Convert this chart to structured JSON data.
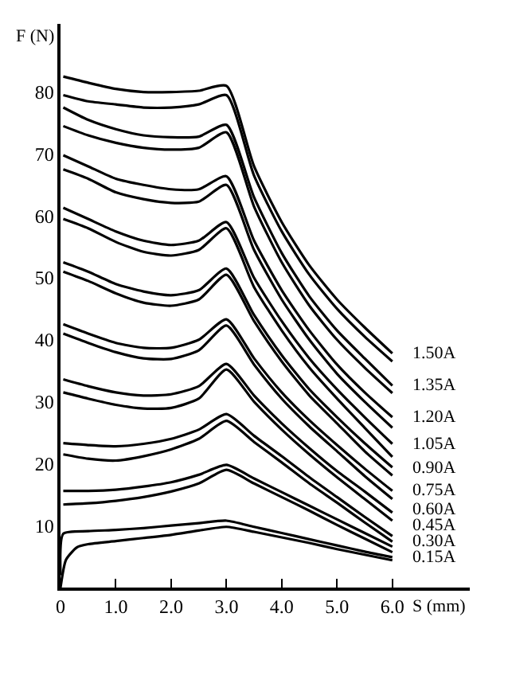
{
  "chart_data": {
    "type": "line",
    "xlabel": "S (mm)",
    "ylabel": "F (N)",
    "x": [
      0.05,
      0.5,
      1,
      1.5,
      2,
      2.5,
      3,
      3.5,
      4,
      4.5,
      5,
      5.5,
      6
    ],
    "xlim": [
      0,
      7.4
    ],
    "ylim": [
      0,
      91
    ],
    "xticks": [
      0,
      {
        "value": 1,
        "label": "1.0"
      },
      {
        "value": 2,
        "label": "2.0"
      },
      {
        "value": 3,
        "label": "3.0"
      },
      {
        "value": 4,
        "label": "4.0"
      },
      {
        "value": 5,
        "label": "5.0"
      },
      {
        "value": 6,
        "label": "6.0"
      }
    ],
    "yticks": [
      10,
      20,
      30,
      40,
      50,
      60,
      70,
      80
    ],
    "legend": false,
    "marker": "none",
    "line_style": "solid",
    "series": [
      {
        "name": "1.50A",
        "color": "#000000",
        "values": [
          82.5,
          81.5,
          80.5,
          80,
          80,
          80.2,
          81,
          68,
          59,
          52,
          46.5,
          42,
          37.8
        ]
      },
      {
        "color": "#000000",
        "values": [
          79.5,
          78.5,
          78,
          77.5,
          77.5,
          78,
          79.5,
          66.5,
          57.5,
          50.5,
          45,
          40.5,
          36.5
        ]
      },
      {
        "name": "1.35A",
        "color": "#000000",
        "values": [
          77.5,
          75.5,
          74,
          73,
          72.7,
          72.8,
          74.7,
          63,
          54,
          47,
          41.5,
          37,
          32.6
        ]
      },
      {
        "color": "#000000",
        "values": [
          74.5,
          73,
          71.8,
          71,
          70.7,
          71,
          73.5,
          61.5,
          52.5,
          45.5,
          40,
          35.5,
          31.4
        ]
      },
      {
        "name": "1.20A",
        "color": "#000000",
        "values": [
          69.8,
          68,
          66,
          65,
          64.3,
          64.3,
          66.4,
          56,
          48,
          41.5,
          36,
          31.5,
          27.5
        ]
      },
      {
        "color": "#000000",
        "values": [
          67.5,
          66,
          63.8,
          62.7,
          62.1,
          62.3,
          65,
          54.5,
          46.5,
          40,
          34.5,
          30,
          25.8
        ]
      },
      {
        "name": "1.05A",
        "color": "#000000",
        "values": [
          61.3,
          59.5,
          57.5,
          56,
          55.3,
          56,
          59,
          50,
          43,
          37,
          32,
          27.5,
          23.2
        ]
      },
      {
        "color": "#000000",
        "values": [
          59.5,
          58,
          55.8,
          54.2,
          53.6,
          54.5,
          58,
          48.5,
          41.5,
          35.5,
          30.5,
          25.8,
          21.1
        ]
      },
      {
        "name": "0.90A",
        "color": "#000000",
        "values": [
          52.5,
          51,
          49,
          47.8,
          47.2,
          48,
          51.5,
          44,
          37.5,
          32,
          27.5,
          23.3,
          19.4
        ]
      },
      {
        "color": "#000000",
        "values": [
          51,
          49.5,
          47.5,
          46,
          45.5,
          46.5,
          50.5,
          43,
          36.5,
          31,
          26.5,
          22,
          18.1
        ]
      },
      {
        "name": "0.75A",
        "color": "#000000",
        "values": [
          42.5,
          41,
          39.5,
          38.7,
          38.7,
          40,
          43.3,
          37,
          31.5,
          27,
          23,
          19.2,
          15.6
        ]
      },
      {
        "color": "#000000",
        "values": [
          41,
          39.5,
          38,
          37,
          36.9,
          38.3,
          42.3,
          36,
          30.5,
          26,
          22,
          18,
          14.3
        ]
      },
      {
        "name": "0.60A",
        "color": "#000000",
        "values": [
          33.6,
          32.5,
          31.5,
          31,
          31.2,
          32.5,
          36.1,
          31,
          26.5,
          22.5,
          18.8,
          15.5,
          12.1
        ]
      },
      {
        "color": "#000000",
        "values": [
          31.5,
          30.5,
          29.5,
          28.9,
          29,
          30.5,
          35.2,
          30,
          25.5,
          21.5,
          17.8,
          14.3,
          10.8
        ]
      },
      {
        "name": "0.45A",
        "color": "#000000",
        "values": [
          23.3,
          23,
          22.8,
          23.2,
          24,
          25.5,
          28,
          24.5,
          21.2,
          17.8,
          14.6,
          11.4,
          8.3
        ]
      },
      {
        "color": "#000000",
        "values": [
          21.5,
          20.8,
          20.5,
          21.2,
          22.3,
          24,
          26.9,
          23.5,
          20.2,
          16.8,
          13.7,
          10.5,
          7.4
        ]
      },
      {
        "name": "0.30A",
        "color": "#000000",
        "values": [
          15.6,
          15.6,
          15.8,
          16.3,
          17,
          18.2,
          19.8,
          17.6,
          15.4,
          13.2,
          11,
          8.8,
          6.6
        ]
      },
      {
        "color": "#000000",
        "values": [
          13.4,
          13.6,
          14,
          14.6,
          15.5,
          16.8,
          19,
          16.8,
          14.6,
          12.4,
          10.1,
          7.9,
          5.7
        ]
      },
      {
        "name": "0.15A",
        "color": "#000000",
        "x": [
          0,
          0.05,
          0.5,
          1,
          1.5,
          2,
          2.5,
          3,
          3.5,
          4,
          4.5,
          5,
          5.5,
          6
        ],
        "values": [
          2,
          8.7,
          9.1,
          9.3,
          9.6,
          10,
          10.4,
          10.8,
          9.8,
          8.8,
          7.8,
          6.8,
          5.8,
          4.9
        ]
      },
      {
        "color": "#000000",
        "x": [
          0,
          0.1,
          0.3,
          0.5,
          1,
          1.5,
          2,
          2.5,
          3,
          3.5,
          4,
          4.5,
          5,
          5.5,
          6
        ],
        "values": [
          0,
          4.5,
          6.5,
          7,
          7.5,
          8,
          8.5,
          9.2,
          9.8,
          9,
          8.1,
          7.2,
          6.2,
          5.3,
          4.4
        ]
      }
    ]
  }
}
